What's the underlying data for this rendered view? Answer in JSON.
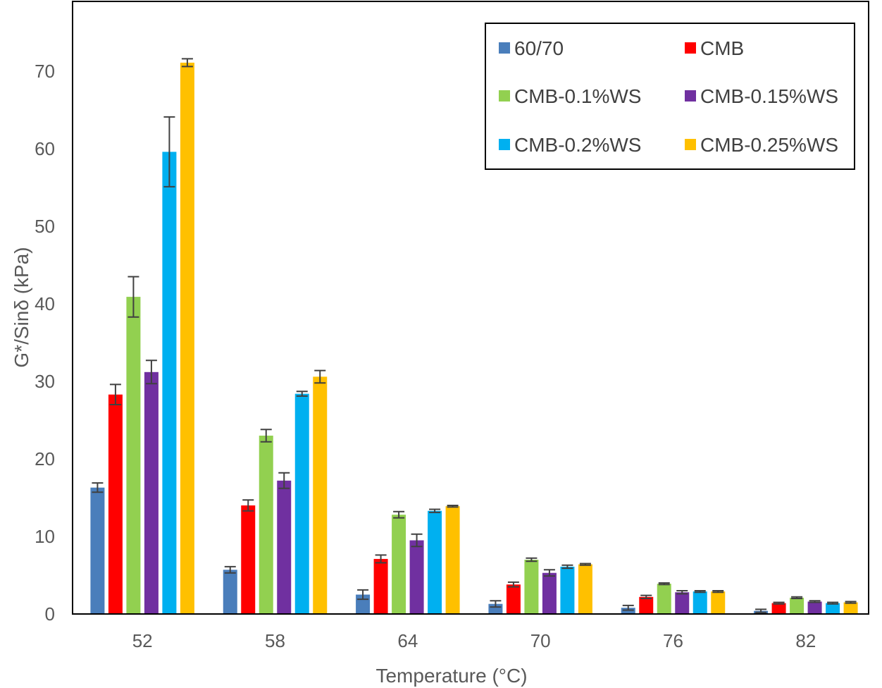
{
  "chart_data": {
    "type": "bar",
    "xlabel": "Temperature (°C)",
    "ylabel": "G*/Sinδ (kPa)",
    "ylim": [
      0,
      78
    ],
    "yticks": [
      0,
      10,
      20,
      30,
      40,
      50,
      60,
      70
    ],
    "legend_placement": "top-right",
    "categories": [
      "52",
      "58",
      "64",
      "70",
      "76",
      "82"
    ],
    "series": [
      {
        "name": "60/70",
        "color": "#4a7ebb",
        "values": [
          16.3,
          5.7,
          2.5,
          1.3,
          0.8,
          0.4
        ],
        "errors": [
          0.6,
          0.4,
          0.6,
          0.4,
          0.3,
          0.2
        ]
      },
      {
        "name": "CMB",
        "color": "#ff0000",
        "values": [
          28.3,
          14.0,
          7.1,
          3.8,
          2.2,
          1.4
        ],
        "errors": [
          1.3,
          0.7,
          0.5,
          0.3,
          0.2,
          0.1
        ]
      },
      {
        "name": "CMB-0.1%WS",
        "color": "#92d050",
        "values": [
          40.9,
          23.0,
          12.8,
          7.0,
          3.9,
          2.1
        ],
        "errors": [
          2.6,
          0.8,
          0.4,
          0.2,
          0.1,
          0.1
        ]
      },
      {
        "name": "CMB-0.15%WS",
        "color": "#7030a0",
        "values": [
          31.2,
          17.2,
          9.5,
          5.3,
          2.8,
          1.6
        ],
        "errors": [
          1.5,
          1.0,
          0.8,
          0.4,
          0.2,
          0.1
        ]
      },
      {
        "name": "CMB-0.2%WS",
        "color": "#00b0f0",
        "values": [
          59.6,
          28.4,
          13.3,
          6.1,
          2.9,
          1.4
        ],
        "errors": [
          4.5,
          0.3,
          0.2,
          0.2,
          0.1,
          0.1
        ]
      },
      {
        "name": "CMB-0.25%WS",
        "color": "#ffc000",
        "values": [
          71.1,
          30.6,
          13.9,
          6.4,
          2.9,
          1.5
        ],
        "errors": [
          0.5,
          0.8,
          0.1,
          0.1,
          0.1,
          0.1
        ]
      }
    ]
  }
}
